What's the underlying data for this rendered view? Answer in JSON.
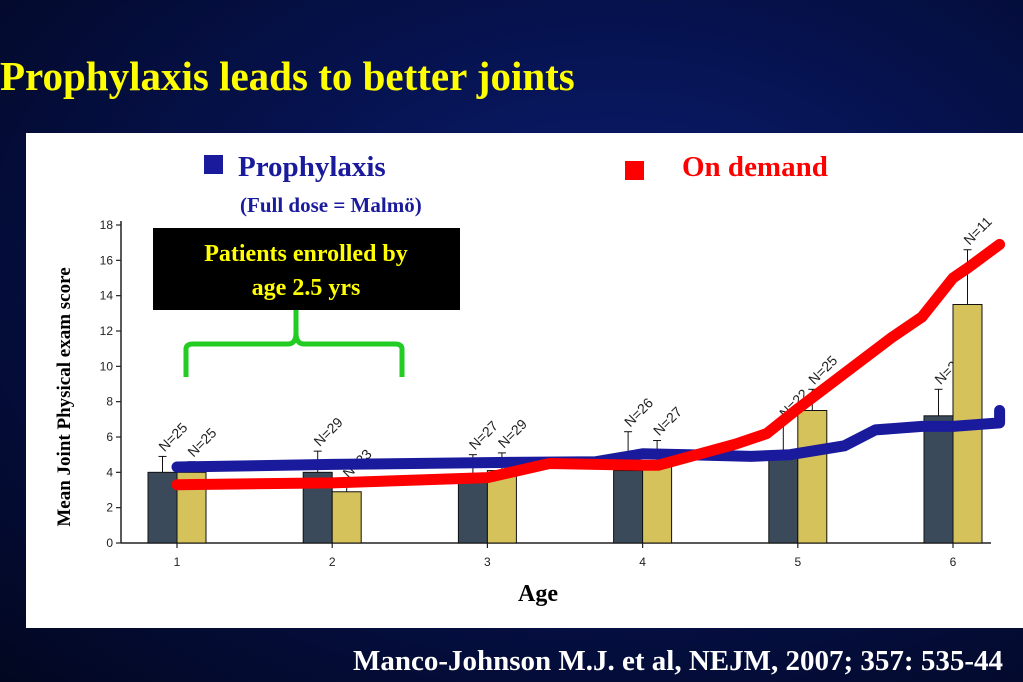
{
  "slide": {
    "title": "Prophylaxis leads to better joints",
    "citation": "Manco-Johnson M.J. et al, NEJM, 2007; 357: 535-44"
  },
  "colors": {
    "title": "#ffff00",
    "prophylaxis": "#1a1a9c",
    "on_demand": "#ff0000",
    "bar_dark": "#3a4a5a",
    "bar_gold": "#d6c25a",
    "bracket": "#22cc22",
    "callout_bg": "#000000",
    "callout_text": "#ffff00"
  },
  "callout": {
    "line1": "Patients enrolled by",
    "line2": "age 2.5 yrs"
  },
  "chart_data": {
    "type": "bar",
    "xlabel": "Age",
    "ylabel": "Mean Joint Physical exam score",
    "ylim": [
      0,
      18
    ],
    "yticks": [
      0,
      2,
      4,
      6,
      8,
      10,
      12,
      14,
      16,
      18
    ],
    "categories": [
      "1",
      "2",
      "3",
      "4",
      "5",
      "6"
    ],
    "legend": [
      {
        "name": "Prophylaxis",
        "sub": "(Full dose = Malmö)",
        "color": "#1a1a9c"
      },
      {
        "name": "On demand",
        "color": "#ff0000"
      }
    ],
    "bar_series": [
      {
        "values": [
          4.0,
          4.0,
          3.9,
          4.1,
          5.2,
          7.2
        ],
        "errors": [
          0.9,
          1.2,
          1.1,
          2.2,
          1.6,
          1.5
        ],
        "labels": [
          "N=25",
          "N=29",
          "N=27",
          "N=26",
          "N=22",
          "N=22"
        ],
        "color": "#3a4a5a"
      },
      {
        "values": [
          4.0,
          2.9,
          4.1,
          4.3,
          7.5,
          13.5
        ],
        "errors": [
          0.6,
          0.5,
          1.0,
          1.5,
          1.2,
          3.1
        ],
        "labels": [
          "N=25",
          "N=33",
          "N=29",
          "N=27",
          "N=25",
          "N=11"
        ],
        "color": "#d6c25a"
      }
    ],
    "line_series": [
      {
        "name": "Prophylaxis",
        "color": "#1a1a9c",
        "points": [
          [
            1.0,
            4.3
          ],
          [
            2.0,
            4.45
          ],
          [
            3.0,
            4.55
          ],
          [
            3.7,
            4.6
          ],
          [
            4.0,
            5.05
          ],
          [
            4.3,
            5.0
          ],
          [
            4.7,
            4.9
          ],
          [
            4.95,
            5.0
          ],
          [
            5.3,
            5.5
          ],
          [
            5.5,
            6.4
          ],
          [
            5.8,
            6.6
          ],
          [
            6.0,
            6.6
          ],
          [
            6.3,
            6.8
          ],
          [
            6.3,
            7.5
          ]
        ]
      },
      {
        "name": "On demand",
        "color": "#ff0000",
        "points": [
          [
            1.0,
            3.3
          ],
          [
            2.0,
            3.4
          ],
          [
            3.0,
            3.7
          ],
          [
            3.4,
            4.5
          ],
          [
            4.0,
            4.4
          ],
          [
            4.1,
            4.4
          ],
          [
            4.6,
            5.6
          ],
          [
            4.8,
            6.2
          ],
          [
            5.0,
            7.6
          ],
          [
            5.3,
            9.6
          ],
          [
            5.6,
            11.6
          ],
          [
            5.8,
            12.8
          ],
          [
            6.0,
            15.0
          ],
          [
            6.1,
            15.6
          ],
          [
            6.3,
            16.9
          ]
        ]
      }
    ]
  }
}
